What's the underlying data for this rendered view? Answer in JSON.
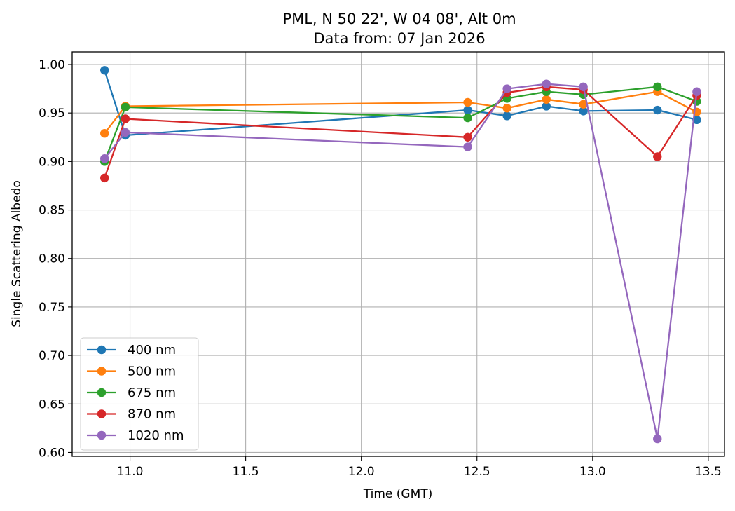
{
  "chart_data": {
    "type": "line",
    "title": "PML, N 50 22', W 04 08', Alt 0m",
    "subtitle": "Data from: 07 Jan 2026",
    "xlabel": "Time (GMT)",
    "ylabel": "Single Scattering Albedo",
    "xlim": [
      10.75,
      13.57
    ],
    "ylim": [
      0.596,
      1.013
    ],
    "xticks": [
      "11.0",
      "11.5",
      "12.0",
      "12.5",
      "13.0",
      "13.5"
    ],
    "yticks": [
      "0.60",
      "0.65",
      "0.70",
      "0.75",
      "0.80",
      "0.85",
      "0.90",
      "0.95",
      "1.00"
    ],
    "grid": true,
    "legend_position": "lower-left",
    "x": [
      10.89,
      10.98,
      12.46,
      12.63,
      12.8,
      12.96,
      13.28,
      13.45
    ],
    "series": [
      {
        "name": "400 nm",
        "color": "#1f77b4",
        "values": [
          0.994,
          0.927,
          0.953,
          0.947,
          0.957,
          0.952,
          0.953,
          0.943
        ]
      },
      {
        "name": "500 nm",
        "color": "#ff7f0e",
        "values": [
          0.929,
          0.957,
          0.961,
          0.955,
          0.964,
          0.959,
          0.972,
          0.951
        ]
      },
      {
        "name": "675 nm",
        "color": "#2ca02c",
        "values": [
          0.9,
          0.956,
          0.945,
          0.965,
          0.972,
          0.969,
          0.977,
          0.962
        ]
      },
      {
        "name": "870 nm",
        "color": "#d62728",
        "values": [
          0.883,
          0.944,
          0.925,
          0.971,
          0.977,
          0.974,
          0.905,
          0.968
        ]
      },
      {
        "name": "1020 nm",
        "color": "#9467bd",
        "values": [
          0.903,
          0.93,
          0.915,
          0.975,
          0.98,
          0.977,
          0.614,
          0.972
        ]
      }
    ]
  }
}
